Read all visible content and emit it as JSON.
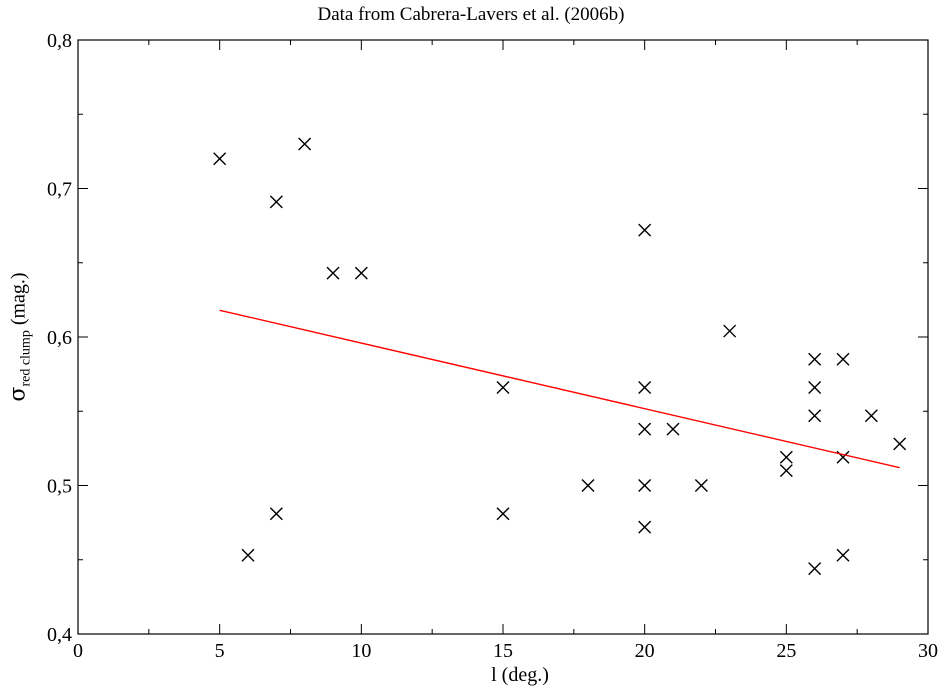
{
  "chart_data": {
    "type": "scatter",
    "title": "Data from Cabrera-Lavers et al. (2006b)",
    "xlabel": "l (deg.)",
    "ylabel": {
      "symbol": "σ",
      "subscript": "red clump",
      "unit": "(mag.)"
    },
    "xlim": [
      0,
      30
    ],
    "ylim": [
      0.4,
      0.8
    ],
    "x_ticks": [
      0,
      5,
      10,
      15,
      20,
      25,
      30
    ],
    "x_tick_labels": [
      "0",
      "5",
      "10",
      "15",
      "20",
      "25",
      "30"
    ],
    "y_ticks": [
      0.4,
      0.5,
      0.6,
      0.7,
      0.8
    ],
    "y_tick_labels": [
      "0,4",
      "0,5",
      "0,6",
      "0,7",
      "0,8"
    ],
    "grid": false,
    "series": [
      {
        "marker": "x",
        "color": "#000000",
        "points": [
          {
            "x": 5,
            "y": 0.72
          },
          {
            "x": 6,
            "y": 0.453
          },
          {
            "x": 7,
            "y": 0.691
          },
          {
            "x": 7,
            "y": 0.481
          },
          {
            "x": 8,
            "y": 0.73
          },
          {
            "x": 9,
            "y": 0.643
          },
          {
            "x": 10,
            "y": 0.643
          },
          {
            "x": 15,
            "y": 0.566
          },
          {
            "x": 15,
            "y": 0.481
          },
          {
            "x": 18,
            "y": 0.5
          },
          {
            "x": 20,
            "y": 0.672
          },
          {
            "x": 20,
            "y": 0.566
          },
          {
            "x": 20,
            "y": 0.538
          },
          {
            "x": 20,
            "y": 0.5
          },
          {
            "x": 20,
            "y": 0.472
          },
          {
            "x": 21,
            "y": 0.538
          },
          {
            "x": 22,
            "y": 0.5
          },
          {
            "x": 23,
            "y": 0.604
          },
          {
            "x": 25,
            "y": 0.519
          },
          {
            "x": 25,
            "y": 0.51
          },
          {
            "x": 26,
            "y": 0.585
          },
          {
            "x": 26,
            "y": 0.566
          },
          {
            "x": 26,
            "y": 0.547
          },
          {
            "x": 26,
            "y": 0.444
          },
          {
            "x": 27,
            "y": 0.585
          },
          {
            "x": 27,
            "y": 0.519
          },
          {
            "x": 27,
            "y": 0.453
          },
          {
            "x": 28,
            "y": 0.547
          },
          {
            "x": 29,
            "y": 0.528
          }
        ]
      },
      {
        "type": "line",
        "color": "#ff0000",
        "points": [
          {
            "x": 5,
            "y": 0.618
          },
          {
            "x": 29,
            "y": 0.512
          }
        ]
      }
    ]
  }
}
